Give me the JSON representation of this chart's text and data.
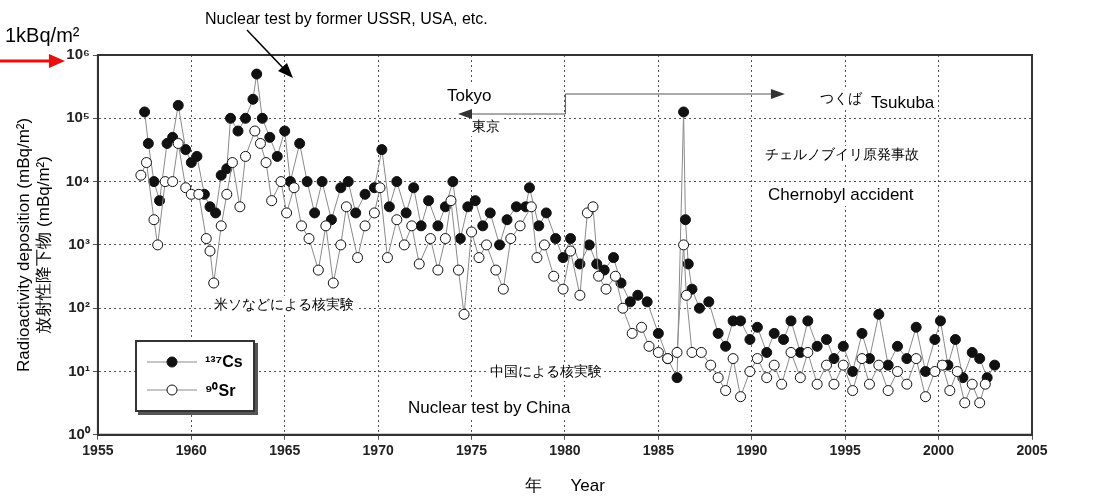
{
  "chart_data": {
    "type": "line",
    "xlabel": "年      Year",
    "ylabel": "Radioactivity deposition (mBq/m²)\n放射性降下物 (mBq/m²)",
    "annotations": [
      "1kBq/m²",
      "Nuclear test by former USSR, USA, etc.",
      "Tokyo",
      "東京",
      "つくば",
      "Tsukuba",
      "チェルノブイリ原発事故",
      "Chernobyl accident",
      "米ソなどによる核実験",
      "中国による核実験",
      "Nuclear test by China"
    ],
    "xlim": [
      1955,
      2005
    ],
    "xticks": [
      1955,
      1960,
      1965,
      1970,
      1975,
      1980,
      1985,
      1990,
      1995,
      2000,
      2005
    ],
    "ylim": [
      1,
      1000000
    ],
    "yticks": [
      {
        "value": 1,
        "label": "10⁰"
      },
      {
        "value": 10,
        "label": "10¹"
      },
      {
        "value": 100,
        "label": "10²"
      },
      {
        "value": 1000,
        "label": "10³"
      },
      {
        "value": 10000,
        "label": "10⁴"
      },
      {
        "value": 100000,
        "label": "10⁵"
      },
      {
        "value": 1000000,
        "label": "10⁶"
      }
    ],
    "log": "y",
    "grid": true,
    "legend": "bottom left",
    "marker": "circle",
    "line_style": "solid",
    "series": [
      {
        "name": "¹³⁷Cs",
        "color": "#111111",
        "x": [
          1957.5,
          1957.7,
          1958.0,
          1958.3,
          1958.7,
          1959.0,
          1959.3,
          1959.7,
          1960.0,
          1960.3,
          1960.7,
          1961.0,
          1961.3,
          1961.6,
          1961.9,
          1962.1,
          1962.5,
          1962.9,
          1963.3,
          1963.5,
          1963.8,
          1964.2,
          1964.6,
          1965.0,
          1965.3,
          1965.8,
          1966.2,
          1966.6,
          1967.0,
          1967.5,
          1968.0,
          1968.4,
          1968.8,
          1969.3,
          1969.8,
          1970.2,
          1970.6,
          1971.0,
          1971.5,
          1971.9,
          1972.3,
          1972.7,
          1973.2,
          1973.6,
          1974.0,
          1974.4,
          1974.8,
          1975.2,
          1975.6,
          1976.0,
          1976.5,
          1976.9,
          1977.4,
          1977.9,
          1978.1,
          1978.6,
          1979.0,
          1979.5,
          1979.9,
          1980.3,
          1980.8,
          1981.3,
          1981.7,
          1982.1,
          1982.6,
          1983.0,
          1983.5,
          1983.9,
          1984.4,
          1985.0,
          1985.5,
          1986.0,
          1986.35,
          1986.45,
          1986.6,
          1986.8,
          1987.2,
          1987.7,
          1988.2,
          1988.6,
          1989.0,
          1989.4,
          1989.9,
          1990.3,
          1990.8,
          1991.2,
          1991.7,
          1992.1,
          1992.6,
          1993.0,
          1993.5,
          1994.0,
          1994.4,
          1994.9,
          1995.4,
          1995.9,
          1996.3,
          1996.8,
          1997.3,
          1997.8,
          1998.3,
          1998.8,
          1999.3,
          1999.8,
          2000.1,
          2000.5,
          2000.9,
          2001.3,
          2001.8,
          2002.2,
          2002.6,
          2003.0
        ],
        "values": [
          126000,
          40000,
          10000,
          5000,
          40000,
          50000,
          160000,
          32000,
          20000,
          25000,
          6300,
          4000,
          3200,
          12600,
          16000,
          100000,
          63000,
          100000,
          200000,
          500000,
          100000,
          50000,
          25000,
          63000,
          10000,
          40000,
          10000,
          3200,
          10000,
          2500,
          8000,
          10000,
          3200,
          6300,
          8000,
          32000,
          4000,
          10000,
          3200,
          8000,
          2000,
          5000,
          2000,
          4000,
          10000,
          1260,
          4000,
          5000,
          2000,
          3200,
          1000,
          2500,
          4000,
          4000,
          8000,
          2000,
          3200,
          1260,
          630,
          1260,
          500,
          1000,
          500,
          400,
          630,
          250,
          126,
          160,
          126,
          40,
          16,
          8,
          126000,
          2500,
          500,
          200,
          100,
          126,
          40,
          25,
          63,
          63,
          32,
          50,
          20,
          40,
          32,
          63,
          20,
          63,
          25,
          32,
          16,
          25,
          10,
          40,
          16,
          80,
          12.6,
          25,
          16,
          50,
          10,
          32,
          63,
          12.6,
          32,
          8,
          20,
          16,
          8,
          12.6
        ]
      },
      {
        "name": "⁹⁰Sr",
        "color": "#ffffff",
        "x": [
          1957.3,
          1957.6,
          1958.0,
          1958.2,
          1958.6,
          1959.0,
          1959.3,
          1959.7,
          1960.0,
          1960.4,
          1960.8,
          1961.0,
          1961.2,
          1961.6,
          1961.9,
          1962.2,
          1962.6,
          1962.9,
          1963.4,
          1963.7,
          1964.0,
          1964.3,
          1964.8,
          1965.1,
          1965.5,
          1965.9,
          1966.3,
          1966.8,
          1967.2,
          1967.6,
          1968.0,
          1968.3,
          1968.9,
          1969.3,
          1969.8,
          1970.1,
          1970.5,
          1971.0,
          1971.4,
          1971.8,
          1972.2,
          1972.8,
          1973.2,
          1973.6,
          1973.9,
          1974.3,
          1974.6,
          1975.0,
          1975.4,
          1975.8,
          1976.3,
          1976.7,
          1977.1,
          1977.6,
          1978.2,
          1978.5,
          1978.9,
          1979.4,
          1979.9,
          1980.3,
          1980.8,
          1981.2,
          1981.5,
          1981.8,
          1982.2,
          1982.7,
          1983.1,
          1983.6,
          1984.1,
          1984.5,
          1985.0,
          1985.5,
          1986.0,
          1986.35,
          1986.5,
          1986.8,
          1987.3,
          1987.8,
          1988.2,
          1988.6,
          1989.0,
          1989.4,
          1989.9,
          1990.3,
          1990.8,
          1991.2,
          1991.6,
          1992.1,
          1992.6,
          1993.0,
          1993.5,
          1994.0,
          1994.4,
          1994.9,
          1995.4,
          1995.9,
          1996.3,
          1996.8,
          1997.3,
          1997.8,
          1998.3,
          1998.8,
          1999.3,
          1999.8,
          2000.2,
          2000.6,
          2001.0,
          2001.4,
          2001.8,
          2002.2,
          2002.5
        ],
        "values": [
          12600,
          20000,
          2500,
          1000,
          10000,
          10000,
          40000,
          8000,
          6300,
          6300,
          1260,
          800,
          250,
          2000,
          6300,
          20000,
          4000,
          25000,
          63000,
          40000,
          20000,
          5000,
          10000,
          3200,
          8000,
          2000,
          1260,
          400,
          2000,
          250,
          1000,
          4000,
          630,
          2000,
          3200,
          8000,
          630,
          2500,
          1000,
          2000,
          500,
          1260,
          400,
          1260,
          5000,
          400,
          80,
          1600,
          630,
          1000,
          400,
          200,
          1260,
          2000,
          4000,
          630,
          1000,
          320,
          200,
          800,
          160,
          3200,
          4000,
          320,
          200,
          320,
          100,
          40,
          50,
          25,
          20,
          16,
          20,
          1000,
          160,
          20,
          20,
          12.6,
          8,
          5,
          16,
          4,
          10,
          16,
          8,
          12.6,
          6.3,
          20,
          8,
          20,
          6.3,
          12.6,
          6.3,
          12.6,
          5,
          16,
          6.3,
          12.6,
          5,
          10,
          6.3,
          16,
          4,
          10,
          12.6,
          5,
          10,
          3.2,
          6.3,
          3.2,
          6.3
        ]
      }
    ]
  }
}
